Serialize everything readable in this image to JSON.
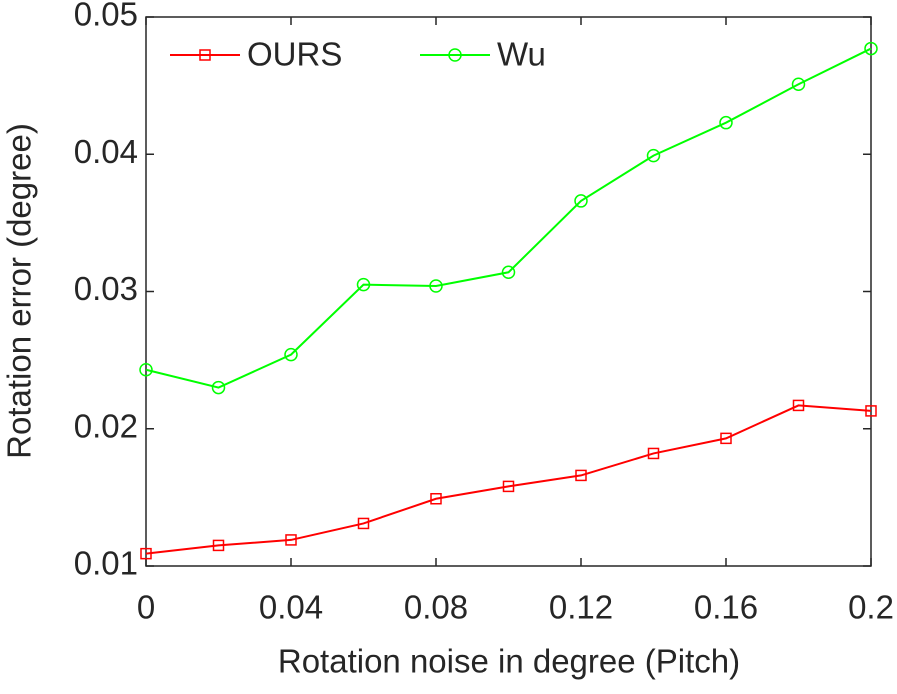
{
  "chart_data": {
    "type": "line",
    "xlabel": "Rotation noise in degree (Pitch)",
    "ylabel": "Rotation error (degree)",
    "x": [
      0,
      0.02,
      0.04,
      0.06,
      0.08,
      0.1,
      0.12,
      0.14,
      0.16,
      0.18,
      0.2
    ],
    "series": [
      {
        "name": "OURS",
        "color": "#ff0000",
        "marker": "square",
        "values": [
          0.0109,
          0.0115,
          0.0119,
          0.0131,
          0.0149,
          0.0158,
          0.0166,
          0.0182,
          0.0193,
          0.0217,
          0.0213
        ]
      },
      {
        "name": "Wu",
        "color": "#00ff00",
        "marker": "circle",
        "values": [
          0.0243,
          0.023,
          0.0254,
          0.0305,
          0.0304,
          0.0314,
          0.0366,
          0.0399,
          0.0423,
          0.0451,
          0.0477
        ]
      }
    ],
    "xlim": [
      0,
      0.2
    ],
    "xticks": [
      0,
      0.04,
      0.08,
      0.12,
      0.16,
      0.2
    ],
    "ylim": [
      0.01,
      0.05
    ],
    "yticks": [
      0.01,
      0.02,
      0.03,
      0.04,
      0.05
    ],
    "legend": "upper-left",
    "grid": false
  }
}
